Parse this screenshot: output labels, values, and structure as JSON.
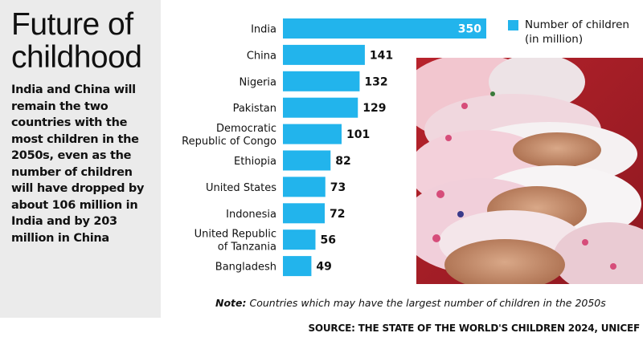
{
  "headline": [
    "Future of",
    "childhood"
  ],
  "blurb": "India and China will remain the two countries with the most children in the 2050s, even as the number of children will have dropped by about 106 million in India and by 203 million in China",
  "note": {
    "prefix": "Note:",
    "text": " Countries which may have the largest number of children in the 2050s"
  },
  "source": "SOURCE: THE STATE OF THE WORLD'S CHILDREN 2024, UNICEF",
  "colors": {
    "bar": "#22b4ec",
    "panel": "#ebebeb"
  },
  "chart_data": {
    "type": "bar",
    "orientation": "horizontal",
    "categories": [
      [
        "India"
      ],
      [
        "China"
      ],
      [
        "Nigeria"
      ],
      [
        "Pakistan"
      ],
      [
        "Democratic",
        "Republic of Congo"
      ],
      [
        "Ethiopia"
      ],
      [
        "United States"
      ],
      [
        "Indonesia"
      ],
      [
        "United Republic",
        "of Tanzania"
      ],
      [
        "Bangladesh"
      ]
    ],
    "series": [
      {
        "name": "Number of children (in million)",
        "name_lines": [
          "Number of children",
          "(in million)"
        ],
        "values": [
          350,
          141,
          132,
          129,
          101,
          82,
          73,
          72,
          56,
          49
        ]
      }
    ],
    "xlim": [
      0,
      350
    ],
    "grid": false,
    "legend": "top-right"
  }
}
